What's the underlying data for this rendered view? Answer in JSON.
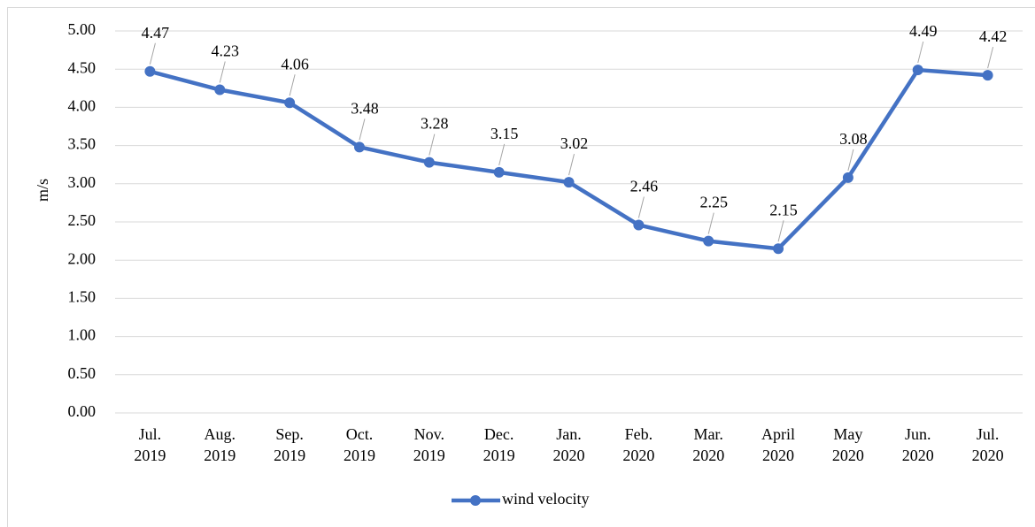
{
  "chart_data": {
    "type": "line",
    "y_label": "m/s",
    "categories": [
      "Jul. 2019",
      "Aug. 2019",
      "Sep. 2019",
      "Oct. 2019",
      "Nov. 2019",
      "Dec. 2019",
      "Jan. 2020",
      "Feb. 2020",
      "Mar. 2020",
      "April 2020",
      "May 2020",
      "Jun. 2020",
      "Jul. 2020"
    ],
    "series": [
      {
        "name": "wind velocity",
        "color": "#4472c4",
        "values": [
          4.47,
          4.23,
          4.06,
          3.48,
          3.28,
          3.15,
          3.02,
          2.46,
          2.25,
          2.15,
          3.08,
          4.49,
          4.42
        ]
      }
    ],
    "ylim": [
      0,
      5
    ],
    "yticks": [
      {
        "value": 0,
        "label": "0.00"
      },
      {
        "value": 0.5,
        "label": "0.50"
      },
      {
        "value": 1,
        "label": "1.00"
      },
      {
        "value": 1.5,
        "label": "1.50"
      },
      {
        "value": 2,
        "label": "2.00"
      },
      {
        "value": 2.5,
        "label": "2.50"
      },
      {
        "value": 3,
        "label": "3.00"
      },
      {
        "value": 3.5,
        "label": "3.50"
      },
      {
        "value": 4,
        "label": "4.00"
      },
      {
        "value": 4.5,
        "label": "4.50"
      },
      {
        "value": 5,
        "label": "5.00"
      }
    ],
    "grid": true,
    "legend": "bottom"
  }
}
